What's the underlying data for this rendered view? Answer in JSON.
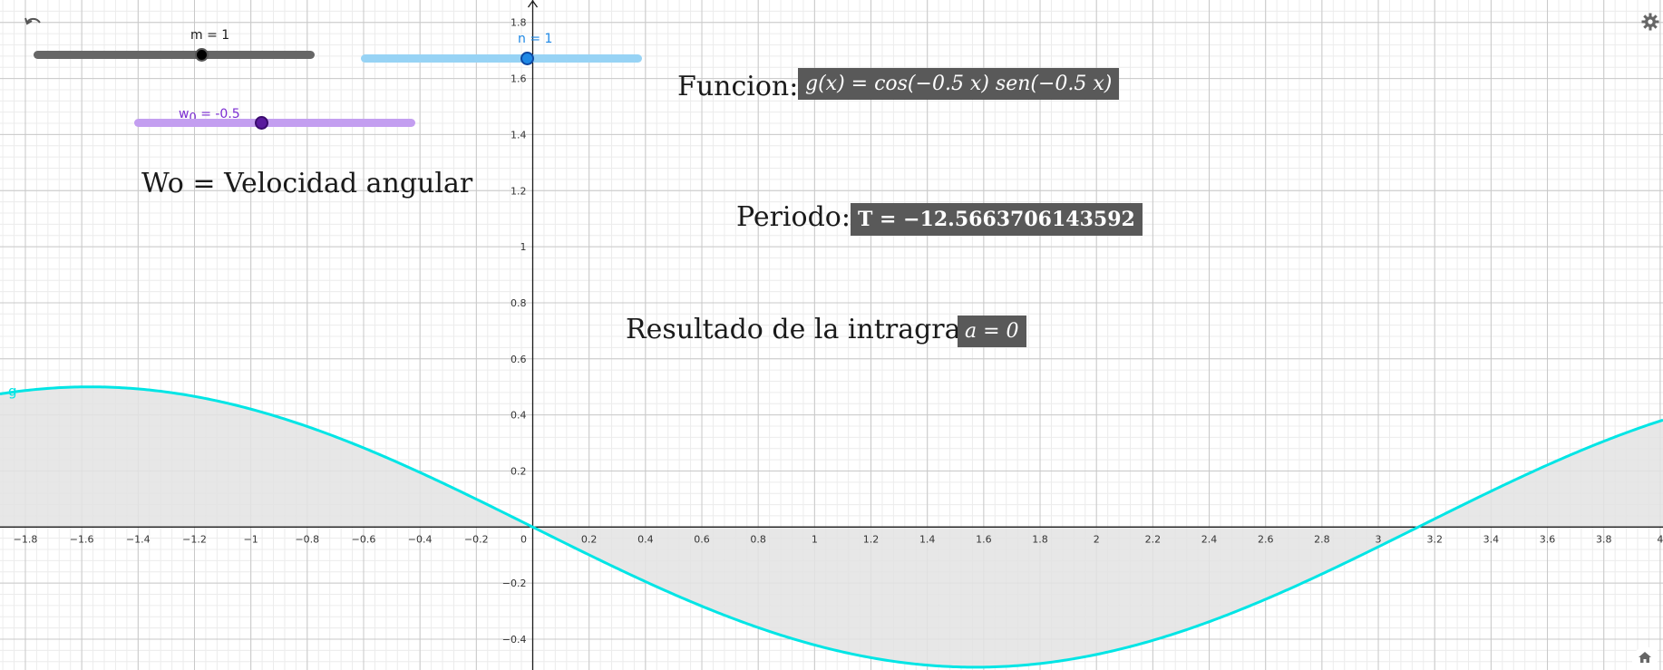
{
  "sliders": {
    "m": {
      "label": "m = 1",
      "value": 1,
      "color": "#666666",
      "thumb": "#000000",
      "min": -5,
      "max": 5
    },
    "n": {
      "label": "n = 1",
      "value": 1,
      "color": "#97d3f5",
      "thumb": "#1e88e5",
      "label_color": "#1e88e5",
      "min": -5,
      "max": 5
    },
    "w0": {
      "label_base": "w",
      "label_sub": "0",
      "label_value": "= -0.5",
      "value": -0.5,
      "color": "#c39ef0",
      "thumb": "#5a1a9e",
      "label_color": "#7a2bd1",
      "min": -2,
      "max": 2
    }
  },
  "captions": {
    "velocidad": "Wo = Velocidad angular",
    "funcion": "Funcion:",
    "periodo": "Periodo:",
    "resultado": "Resultado de la intragral:"
  },
  "formulas": {
    "funcion": "g(x)  =  cos(−0.5 x)  sen(−0.5 x)",
    "periodo": "T  =  −12.5663706143592",
    "resultado": "a  =  0"
  },
  "icons": {
    "undo": "undo-icon",
    "settings": "gear-icon",
    "home": "home-icon"
  },
  "chart_data": {
    "type": "line",
    "function_label": "g",
    "expression": "cos(-0.5 x) sen(-0.5 x)",
    "xlim": [
      -1.89,
      4.01
    ],
    "ylim": [
      -0.51,
      1.88
    ],
    "x_ticks": [
      -1.8,
      -1.6,
      -1.4,
      -1.2,
      -1,
      -0.8,
      -0.6,
      -0.4,
      -0.2,
      0,
      0.2,
      0.4,
      0.6,
      0.8,
      1,
      1.2,
      1.4,
      1.6,
      1.8,
      2,
      2.2,
      2.4,
      2.6,
      2.8,
      3,
      3.2,
      3.4,
      3.6,
      3.8,
      4
    ],
    "x_tick_labels": [
      "−1.8",
      "−1.6",
      "−1.4",
      "−1.2",
      "−1",
      "−0.8",
      "−0.6",
      "−0.4",
      "−0.2",
      "0",
      "0.2",
      "0.4",
      "0.6",
      "0.8",
      "1",
      "1.2",
      "1.4",
      "1.6",
      "1.8",
      "2",
      "2.2",
      "2.4",
      "2.6",
      "2.8",
      "3",
      "3.2",
      "3.4",
      "3.6",
      "3.8",
      "4"
    ],
    "y_ticks": [
      -0.4,
      -0.2,
      0.2,
      0.4,
      0.6,
      0.8,
      1,
      1.2,
      1.4,
      1.6,
      1.8
    ],
    "y_tick_labels": [
      "−0.4",
      "−0.2",
      "0.2",
      "0.4",
      "0.6",
      "0.8",
      "1",
      "1.2",
      "1.4",
      "1.6",
      "1.8"
    ],
    "curve_color": "#00e5e5",
    "fill_color": "#e3e3e3",
    "grid": true
  }
}
